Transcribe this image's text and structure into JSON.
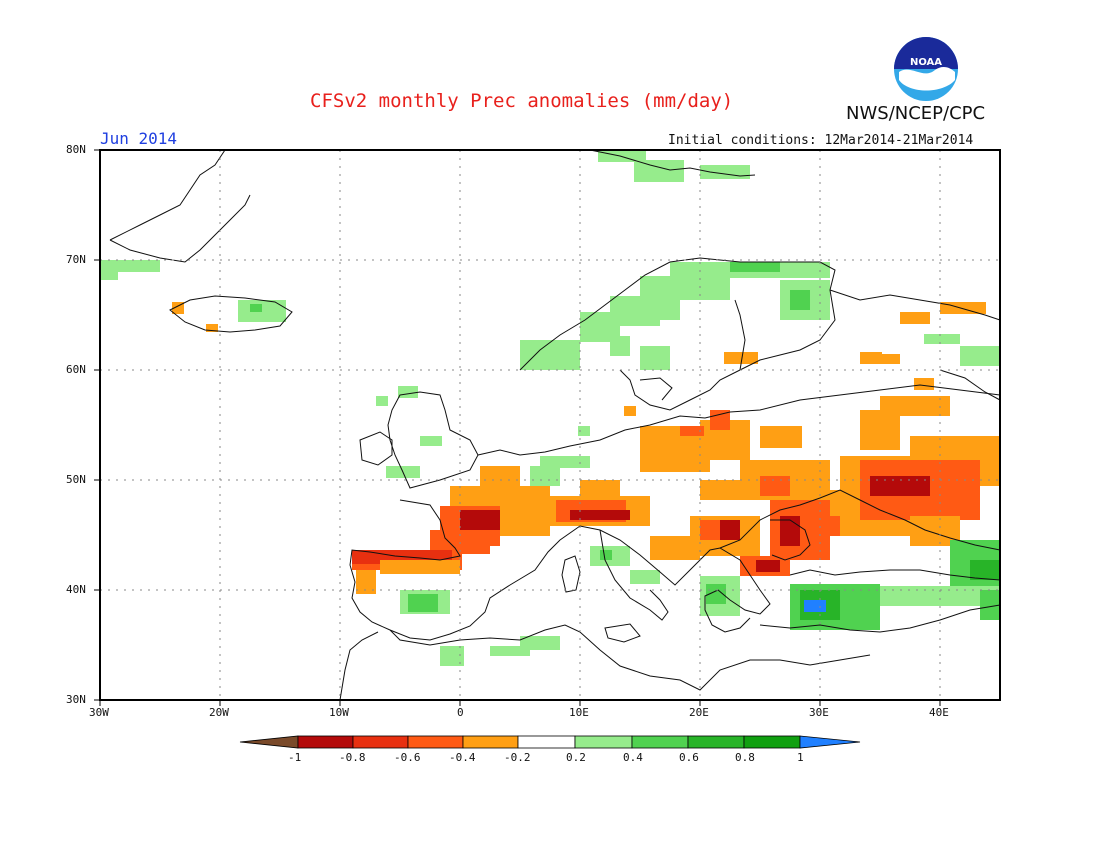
{
  "header": {
    "title": "CFSv2 monthly Prec anomalies (mm/day)",
    "month": "Jun 2014",
    "initial_conditions": "Initial conditions: 12Mar2014-21Mar2014",
    "org": "NWS/NCEP/CPC",
    "logo_text": "NOAA"
  },
  "map": {
    "lon_ticks": [
      "30W",
      "20W",
      "10W",
      "0",
      "10E",
      "20E",
      "30E",
      "40E"
    ],
    "lat_ticks": [
      "80N",
      "70N",
      "60N",
      "50N",
      "40N",
      "30N"
    ]
  },
  "colorbar": {
    "labels": [
      "-1",
      "-0.8",
      "-0.6",
      "-0.4",
      "-0.2",
      "0.2",
      "0.4",
      "0.6",
      "0.8",
      "1"
    ],
    "colors": [
      "#7a4a2a",
      "#b40a0a",
      "#e83010",
      "#ff5a14",
      "#ff9f14",
      "#ffffff",
      "#96ec8c",
      "#50d250",
      "#28b428",
      "#10a010",
      "#2080ff"
    ]
  },
  "colors": {
    "title": "#e8201c",
    "month": "#1f3fe0",
    "land": "#111111",
    "grid": "#888888"
  }
}
